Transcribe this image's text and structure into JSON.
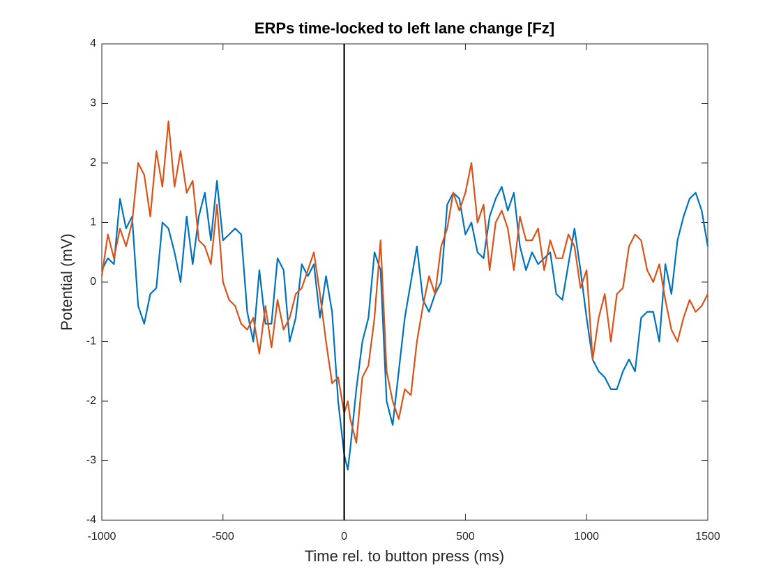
{
  "chart_data": {
    "type": "line",
    "title": "ERPs time-locked to left lane change [Fz]",
    "xlabel": "Time rel. to button press (ms)",
    "ylabel": "Potential (mV)",
    "x": [
      -1000,
      -975,
      -950,
      -925,
      -900,
      -875,
      -850,
      -825,
      -800,
      -775,
      -750,
      -725,
      -700,
      -675,
      -650,
      -625,
      -600,
      -575,
      -550,
      -525,
      -500,
      -475,
      -450,
      -425,
      -400,
      -375,
      -350,
      -325,
      -300,
      -275,
      -250,
      -225,
      -200,
      -175,
      -150,
      -125,
      -100,
      -75,
      -50,
      -25,
      0,
      15,
      25,
      50,
      75,
      100,
      125,
      150,
      175,
      200,
      225,
      250,
      275,
      300,
      325,
      350,
      375,
      400,
      425,
      450,
      475,
      500,
      525,
      550,
      575,
      600,
      625,
      650,
      675,
      700,
      725,
      750,
      775,
      800,
      825,
      850,
      875,
      900,
      925,
      950,
      975,
      1000,
      1025,
      1050,
      1075,
      1100,
      1125,
      1150,
      1175,
      1200,
      1225,
      1250,
      1275,
      1300,
      1325,
      1350,
      1375,
      1400,
      1425,
      1450,
      1475,
      1500
    ],
    "series": [
      {
        "color": "#0072BD",
        "values": [
          0.2,
          0.4,
          0.3,
          1.4,
          0.9,
          1.1,
          -0.4,
          -0.7,
          -0.2,
          -0.1,
          1.0,
          0.9,
          0.5,
          0.0,
          1.1,
          0.3,
          1.1,
          1.5,
          0.7,
          1.7,
          0.7,
          0.8,
          0.9,
          0.8,
          -0.5,
          -1.0,
          0.2,
          -0.7,
          -0.7,
          0.4,
          0.2,
          -1.0,
          -0.6,
          0.3,
          0.1,
          0.3,
          -0.6,
          0.1,
          -0.5,
          -2.0,
          -2.9,
          -3.15,
          -2.8,
          -1.8,
          -1.0,
          -0.6,
          0.5,
          0.2,
          -2.0,
          -2.4,
          -1.5,
          -0.6,
          0.0,
          0.6,
          -0.3,
          -0.5,
          -0.2,
          0.0,
          1.3,
          1.5,
          1.4,
          0.8,
          1.0,
          0.5,
          0.4,
          1.1,
          1.4,
          1.6,
          1.2,
          1.5,
          0.6,
          0.2,
          0.5,
          0.3,
          0.4,
          0.5,
          -0.2,
          -0.3,
          0.3,
          0.9,
          0.2,
          -0.6,
          -1.3,
          -1.5,
          -1.6,
          -1.8,
          -1.8,
          -1.5,
          -1.3,
          -1.5,
          -0.6,
          -0.5,
          -0.5,
          -1.0,
          0.3,
          -0.2,
          0.7,
          1.1,
          1.4,
          1.5,
          1.2,
          0.6
        ]
      },
      {
        "color": "#D95319",
        "values": [
          0.1,
          0.8,
          0.4,
          0.9,
          0.6,
          1.0,
          2.0,
          1.8,
          1.1,
          2.2,
          1.6,
          2.7,
          1.6,
          2.2,
          1.5,
          1.7,
          0.7,
          0.6,
          0.3,
          1.3,
          0.0,
          -0.3,
          -0.4,
          -0.7,
          -0.8,
          -0.6,
          -1.2,
          -0.4,
          -1.1,
          -0.3,
          -0.8,
          -0.6,
          -0.2,
          -0.1,
          0.2,
          0.5,
          -0.2,
          -1.0,
          -1.7,
          -1.6,
          -2.2,
          -2.0,
          -2.3,
          -2.7,
          -1.6,
          -1.4,
          -0.6,
          0.7,
          -1.5,
          -2.0,
          -2.3,
          -1.8,
          -1.9,
          -1.0,
          -0.4,
          0.1,
          -0.2,
          0.6,
          0.9,
          1.5,
          1.2,
          1.5,
          2.0,
          1.0,
          1.3,
          0.2,
          1.0,
          1.2,
          0.9,
          0.2,
          1.1,
          0.7,
          0.7,
          0.9,
          0.2,
          0.7,
          0.4,
          0.4,
          0.8,
          0.6,
          -0.1,
          0.2,
          -1.3,
          -0.6,
          -0.2,
          -1.0,
          -0.2,
          -0.1,
          0.6,
          0.8,
          0.7,
          0.2,
          0.0,
          0.3,
          -0.3,
          -0.8,
          -1.0,
          -0.6,
          -0.3,
          -0.5,
          -0.4,
          -0.2
        ]
      }
    ],
    "vline": 0,
    "xlim": [
      -1000,
      1500
    ],
    "xticks": [
      -1000,
      -500,
      0,
      500,
      1000,
      1500
    ],
    "ylim": [
      -4,
      4
    ],
    "yticks": [
      -4,
      -3,
      -2,
      -1,
      0,
      1,
      2,
      3,
      4
    ]
  }
}
